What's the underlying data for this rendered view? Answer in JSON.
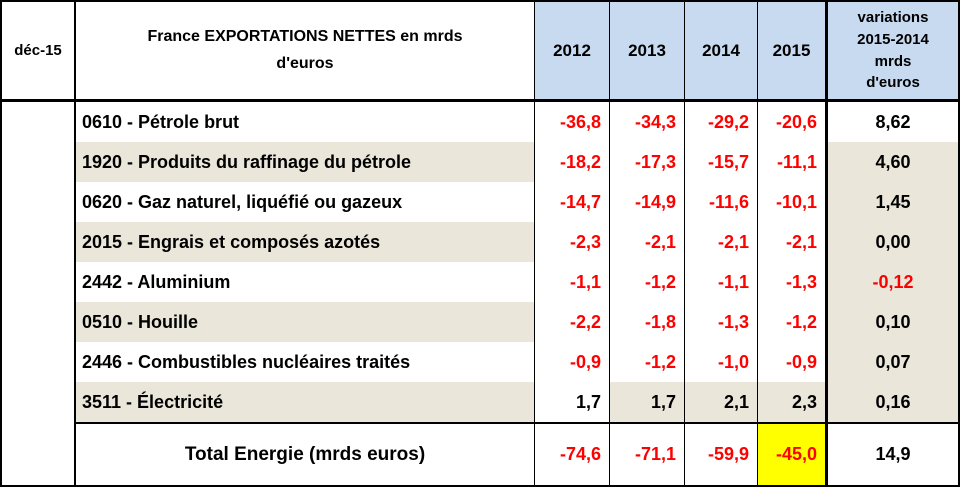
{
  "header": {
    "date_label": "déc-15",
    "title": "France EXPORTATIONS NETTES en mrds\nd'euros",
    "years": [
      "2012",
      "2013",
      "2014",
      "2015"
    ],
    "variation_header": "variations\n2015-2014\nmrds\nd'euros"
  },
  "rows": [
    {
      "label": "0610 - Pétrole brut",
      "values": [
        "-36,8",
        "-34,3",
        "-29,2",
        "-20,6"
      ],
      "variation": "8,62"
    },
    {
      "label": "1920 - Produits du raffinage du pétrole",
      "values": [
        "-18,2",
        "-17,3",
        "-15,7",
        "-11,1"
      ],
      "variation": "4,60"
    },
    {
      "label": "0620 - Gaz naturel, liquéfié ou gazeux",
      "values": [
        "-14,7",
        "-14,9",
        "-11,6",
        "-10,1"
      ],
      "variation": "1,45"
    },
    {
      "label": "2015 - Engrais et composés azotés",
      "values": [
        "-2,3",
        "-2,1",
        "-2,1",
        "-2,1"
      ],
      "variation": "0,00"
    },
    {
      "label": "2442 - Aluminium",
      "values": [
        "-1,1",
        "-1,2",
        "-1,1",
        "-1,3"
      ],
      "variation": "-0,12"
    },
    {
      "label": "0510 - Houille",
      "values": [
        "-2,2",
        "-1,8",
        "-1,3",
        "-1,2"
      ],
      "variation": "0,10"
    },
    {
      "label": "2446 - Combustibles nucléaires traités",
      "values": [
        "-0,9",
        "-1,2",
        "-1,0",
        "-0,9"
      ],
      "variation": "0,07"
    },
    {
      "label": "3511 - Électricité",
      "values": [
        "1,7",
        "1,7",
        "2,1",
        "2,3"
      ],
      "variation": "0,16"
    }
  ],
  "total": {
    "label": "Total Energie (mrds euros)",
    "values": [
      "-74,6",
      "-71,1",
      "-59,9",
      "-45,0"
    ],
    "variation": "14,9"
  },
  "colors": {
    "header_blue": "#c7daf0",
    "stripe_beige": "#eae7da",
    "negative_red": "#ff0000",
    "highlight_yellow": "#ffff00",
    "border_black": "#000000"
  },
  "chart_data": {
    "type": "table",
    "title": "France EXPORTATIONS NETTES en mrds d'euros",
    "date_label": "déc-15",
    "columns": [
      "2012",
      "2013",
      "2014",
      "2015",
      "variations 2015-2014 mrds d'euros"
    ],
    "rows": [
      {
        "label": "0610 - Pétrole brut",
        "values": [
          -36.8,
          -34.3,
          -29.2,
          -20.6
        ],
        "variation": 8.62
      },
      {
        "label": "1920 - Produits du raffinage du pétrole",
        "values": [
          -18.2,
          -17.3,
          -15.7,
          -11.1
        ],
        "variation": 4.6
      },
      {
        "label": "0620 - Gaz naturel, liquéfié ou gazeux",
        "values": [
          -14.7,
          -14.9,
          -11.6,
          -10.1
        ],
        "variation": 1.45
      },
      {
        "label": "2015 - Engrais et composés azotés",
        "values": [
          -2.3,
          -2.1,
          -2.1,
          -2.1
        ],
        "variation": 0.0
      },
      {
        "label": "2442 - Aluminium",
        "values": [
          -1.1,
          -1.2,
          -1.1,
          -1.3
        ],
        "variation": -0.12
      },
      {
        "label": "0510 - Houille",
        "values": [
          -2.2,
          -1.8,
          -1.3,
          -1.2
        ],
        "variation": 0.1
      },
      {
        "label": "2446 - Combustibles nucléaires traités",
        "values": [
          -0.9,
          -1.2,
          -1.0,
          -0.9
        ],
        "variation": 0.07
      },
      {
        "label": "3511 - Électricité",
        "values": [
          1.7,
          1.7,
          2.1,
          2.3
        ],
        "variation": 0.16
      }
    ],
    "total": {
      "label": "Total Energie (mrds euros)",
      "values": [
        -74.6,
        -71.1,
        -59.9,
        -45.0
      ],
      "variation": 14.9,
      "highlighted_cell": "2015"
    },
    "notes": "Negative values shown in red; 2015 total cell highlighted yellow"
  }
}
